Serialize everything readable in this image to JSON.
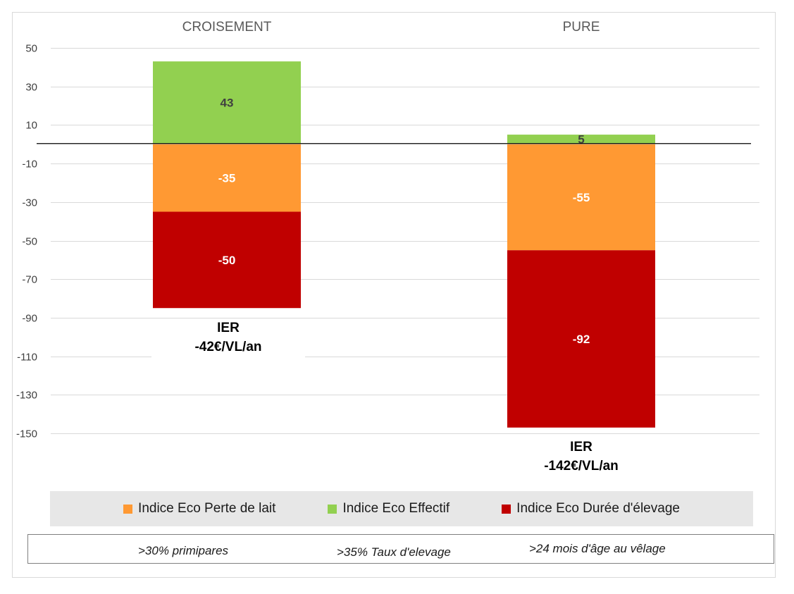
{
  "chart_data": {
    "type": "bar",
    "stacked": true,
    "categories": [
      "CROISEMENT",
      "PURE"
    ],
    "series": [
      {
        "name": "Indice Eco Perte de lait",
        "values": [
          -35,
          -55
        ],
        "color": "#ff9933",
        "labels": [
          "-35",
          "-55"
        ]
      },
      {
        "name": "Indice Eco Effectif",
        "values": [
          43,
          5
        ],
        "color": "#92d050",
        "labels": [
          "43",
          "5"
        ]
      },
      {
        "name": "Indice Eco Durée d'élevage",
        "values": [
          -50,
          -92
        ],
        "color": "#c00000",
        "labels": [
          "-50",
          "-92"
        ]
      }
    ],
    "yticks": [
      50,
      30,
      10,
      -10,
      -30,
      -50,
      -70,
      -90,
      -110,
      -130,
      -150
    ],
    "ylim": [
      -150,
      50
    ],
    "grid": true,
    "legend_position": "bottom"
  },
  "ier": [
    {
      "title": "IER",
      "value": "-42€/VL/an"
    },
    {
      "title": "IER",
      "value": "-142€/VL/an"
    }
  ],
  "criteria": [
    ">30% primipares",
    ">35% Taux d'elevage",
    ">24 mois d'âge au vêlage"
  ]
}
